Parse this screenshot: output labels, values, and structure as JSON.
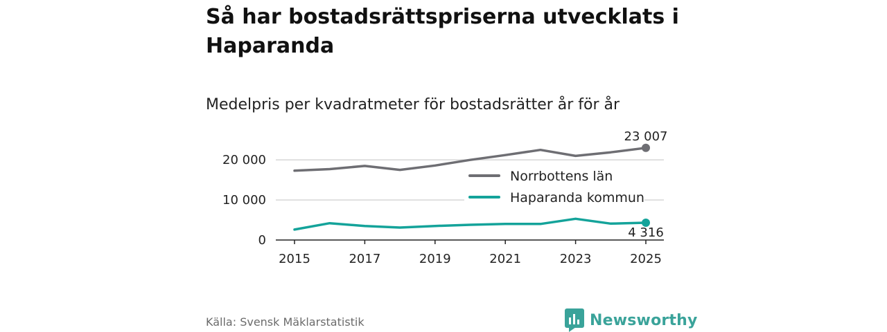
{
  "title": "Så har bostadsrättspriserna utvecklats i Haparanda",
  "subtitle": "Medelpris per kvadratmeter för bostadsrätter år för år",
  "source": "Källa: Svensk Mäklarstatistik",
  "brand": {
    "name": "Newsworthy",
    "logo_icon": "bar-chart-speech-bubble-icon"
  },
  "colors": {
    "norrbotten": "#6e6e73",
    "haparanda": "#14a39a",
    "grid": "#d6d6d6",
    "axis": "#222222",
    "brand": "#3aa39a"
  },
  "chart_data": {
    "type": "line",
    "title": "Medelpris per kvadratmeter för bostadsrätter år för år",
    "x": [
      2015,
      2016,
      2017,
      2018,
      2019,
      2020,
      2021,
      2022,
      2023,
      2024,
      2025
    ],
    "x_tick_labels": [
      "2015",
      "2017",
      "2019",
      "2021",
      "2023",
      "2025"
    ],
    "x_tick_values": [
      2015,
      2017,
      2019,
      2021,
      2023,
      2025
    ],
    "y_tick_labels": [
      "0",
      "10 000",
      "20 000"
    ],
    "y_tick_values": [
      0,
      10000,
      20000
    ],
    "ylim": [
      0,
      24000
    ],
    "xlim": [
      2015,
      2025
    ],
    "grid": true,
    "legend_position": "right-center",
    "series": [
      {
        "name": "Norrbottens län",
        "color": "#6e6e73",
        "values": [
          17300,
          17700,
          18500,
          17500,
          18600,
          20000,
          21200,
          22500,
          21000,
          21900,
          23007
        ],
        "end_label": "23 007"
      },
      {
        "name": "Haparanda kommun",
        "color": "#14a39a",
        "values": [
          2600,
          4200,
          3500,
          3100,
          3500,
          3800,
          4000,
          4000,
          5300,
          4100,
          4316
        ],
        "end_label": "4 316"
      }
    ]
  }
}
